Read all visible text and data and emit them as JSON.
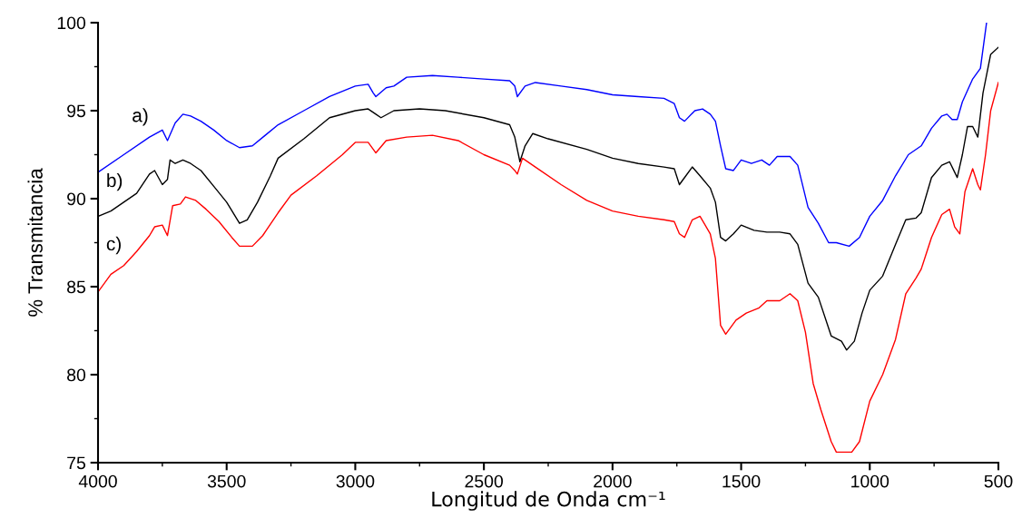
{
  "chart_data": {
    "type": "line",
    "xlabel": "Longitud de Onda cm⁻¹",
    "ylabel": "% Transmitancia",
    "xlim": [
      4000,
      500
    ],
    "ylim": [
      75,
      100
    ],
    "xticks": [
      4000,
      3500,
      3000,
      2500,
      2000,
      1500,
      1000,
      500
    ],
    "yticks": [
      75,
      80,
      85,
      90,
      95,
      100
    ],
    "grid": false,
    "legend": false,
    "marker": "none",
    "line_style": "solid",
    "series": [
      {
        "name": "a)",
        "color": "#0000ff",
        "x": [
          4000,
          3900,
          3800,
          3750,
          3730,
          3700,
          3670,
          3640,
          3600,
          3550,
          3500,
          3450,
          3400,
          3350,
          3300,
          3200,
          3100,
          3000,
          2950,
          2930,
          2920,
          2880,
          2850,
          2800,
          2700,
          2600,
          2500,
          2400,
          2380,
          2370,
          2340,
          2300,
          2200,
          2100,
          2000,
          1900,
          1800,
          1760,
          1740,
          1720,
          1680,
          1650,
          1620,
          1600,
          1580,
          1560,
          1530,
          1500,
          1460,
          1420,
          1390,
          1360,
          1310,
          1280,
          1240,
          1200,
          1160,
          1130,
          1080,
          1040,
          1000,
          950,
          900,
          850,
          800,
          760,
          720,
          700,
          680,
          660,
          640,
          600,
          570,
          546
        ],
        "values": [
          91.5,
          92.5,
          93.5,
          93.9,
          93.3,
          94.3,
          94.8,
          94.7,
          94.4,
          93.9,
          93.3,
          92.9,
          93.0,
          93.6,
          94.2,
          95.0,
          95.8,
          96.4,
          96.5,
          96.0,
          95.8,
          96.3,
          96.4,
          96.9,
          97.0,
          96.9,
          96.8,
          96.7,
          96.4,
          95.8,
          96.4,
          96.6,
          96.4,
          96.2,
          95.9,
          95.8,
          95.7,
          95.4,
          94.6,
          94.4,
          95.0,
          95.1,
          94.8,
          94.4,
          93.0,
          91.7,
          91.6,
          92.2,
          92.0,
          92.2,
          91.9,
          92.4,
          92.4,
          91.9,
          89.5,
          88.6,
          87.5,
          87.5,
          87.3,
          87.8,
          89.0,
          89.9,
          91.3,
          92.5,
          93.0,
          94.0,
          94.7,
          94.8,
          94.5,
          94.5,
          95.5,
          96.8,
          97.4,
          100.0
        ]
      },
      {
        "name": "b)",
        "color": "#000000",
        "x": [
          4000,
          3950,
          3900,
          3850,
          3800,
          3780,
          3750,
          3730,
          3720,
          3700,
          3670,
          3640,
          3600,
          3550,
          3500,
          3450,
          3420,
          3380,
          3330,
          3300,
          3200,
          3100,
          3000,
          2950,
          2920,
          2900,
          2850,
          2750,
          2650,
          2500,
          2400,
          2380,
          2360,
          2340,
          2310,
          2250,
          2100,
          2000,
          1900,
          1800,
          1760,
          1740,
          1720,
          1690,
          1660,
          1620,
          1600,
          1580,
          1560,
          1530,
          1500,
          1450,
          1400,
          1350,
          1310,
          1280,
          1240,
          1200,
          1150,
          1110,
          1090,
          1060,
          1030,
          1000,
          950,
          900,
          860,
          820,
          800,
          760,
          720,
          690,
          670,
          660,
          640,
          620,
          600,
          580,
          560,
          530,
          500
        ],
        "values": [
          89.0,
          89.3,
          89.8,
          90.3,
          91.4,
          91.6,
          90.8,
          91.1,
          92.2,
          92.0,
          92.2,
          92.0,
          91.6,
          90.7,
          89.8,
          88.6,
          88.8,
          89.8,
          91.3,
          92.3,
          93.4,
          94.6,
          95.0,
          95.1,
          94.8,
          94.6,
          95.0,
          95.1,
          95.0,
          94.6,
          94.2,
          93.5,
          92.1,
          93.0,
          93.7,
          93.4,
          92.8,
          92.3,
          92.0,
          91.8,
          91.7,
          90.8,
          91.2,
          91.8,
          91.3,
          90.6,
          89.8,
          87.8,
          87.6,
          88.0,
          88.5,
          88.2,
          88.1,
          88.1,
          88.0,
          87.4,
          85.2,
          84.4,
          82.2,
          81.9,
          81.4,
          81.9,
          83.5,
          84.8,
          85.6,
          87.4,
          88.8,
          88.9,
          89.2,
          91.2,
          91.9,
          92.1,
          91.5,
          91.2,
          92.5,
          94.1,
          94.1,
          93.5,
          96.0,
          98.2,
          98.6
        ]
      },
      {
        "name": "c)",
        "color": "#ff0000",
        "x": [
          4000,
          3950,
          3900,
          3850,
          3800,
          3780,
          3750,
          3730,
          3710,
          3680,
          3660,
          3620,
          3580,
          3530,
          3480,
          3450,
          3400,
          3360,
          3300,
          3250,
          3150,
          3050,
          3000,
          2950,
          2930,
          2920,
          2880,
          2800,
          2700,
          2600,
          2500,
          2400,
          2380,
          2370,
          2350,
          2300,
          2200,
          2100,
          2000,
          1900,
          1800,
          1760,
          1740,
          1720,
          1690,
          1660,
          1620,
          1600,
          1580,
          1560,
          1520,
          1480,
          1430,
          1400,
          1350,
          1310,
          1280,
          1250,
          1220,
          1190,
          1150,
          1130,
          1100,
          1070,
          1040,
          1000,
          950,
          900,
          860,
          820,
          800,
          760,
          720,
          690,
          670,
          650,
          630,
          600,
          580,
          570,
          550,
          530,
          500
        ],
        "values": [
          84.7,
          85.7,
          86.2,
          87.0,
          87.9,
          88.4,
          88.5,
          87.9,
          89.6,
          89.7,
          90.1,
          89.9,
          89.4,
          88.7,
          87.8,
          87.3,
          87.3,
          87.9,
          89.2,
          90.2,
          91.3,
          92.5,
          93.2,
          93.2,
          92.8,
          92.6,
          93.3,
          93.5,
          93.6,
          93.3,
          92.5,
          91.9,
          91.6,
          91.4,
          92.3,
          91.8,
          90.8,
          89.9,
          89.3,
          89.0,
          88.8,
          88.7,
          88.0,
          87.8,
          88.8,
          89.0,
          88.0,
          86.6,
          82.8,
          82.3,
          83.1,
          83.5,
          83.8,
          84.2,
          84.2,
          84.6,
          84.2,
          82.4,
          79.5,
          78.0,
          76.2,
          75.6,
          75.6,
          75.6,
          76.2,
          78.5,
          80.0,
          82.0,
          84.6,
          85.5,
          86.0,
          87.8,
          89.1,
          89.4,
          88.4,
          88.0,
          90.4,
          91.7,
          90.8,
          90.5,
          92.5,
          95.0,
          96.6
        ]
      }
    ]
  }
}
